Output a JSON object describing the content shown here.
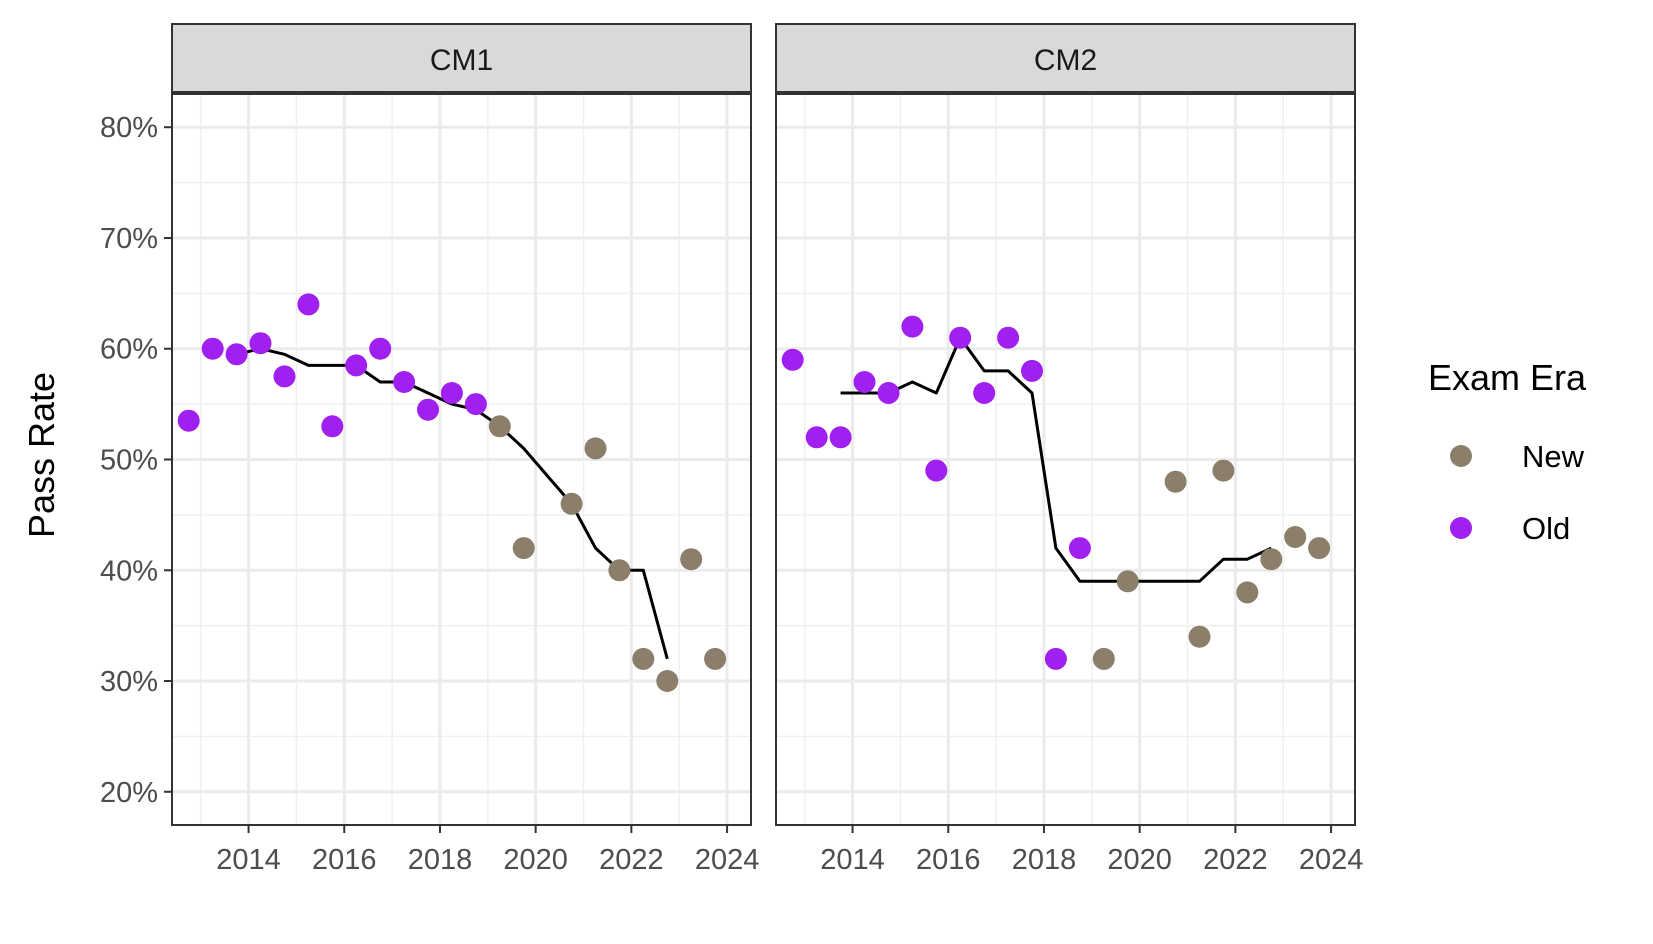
{
  "chart_data": {
    "type": "scatter",
    "ylabel": "Pass Rate",
    "y_ticks": [
      "20%",
      "30%",
      "40%",
      "50%",
      "60%",
      "70%",
      "80%"
    ],
    "y_tick_values": [
      0.2,
      0.3,
      0.4,
      0.5,
      0.6,
      0.7,
      0.8
    ],
    "ylim": [
      0.17,
      0.83
    ],
    "x_ticks": [
      "2014",
      "2016",
      "2018",
      "2020",
      "2022",
      "2024"
    ],
    "x_tick_values": [
      2014,
      2016,
      2018,
      2020,
      2022,
      2024
    ],
    "xlim": [
      2012.4,
      2024.5
    ],
    "grid": true,
    "legend": {
      "title": "Exam Era",
      "placement": "right",
      "entries": [
        {
          "label": "New",
          "color": "#8b7e6a"
        },
        {
          "label": "Old",
          "color": "#a020f0"
        }
      ]
    },
    "colors": {
      "New": "#8b7e6a",
      "Old": "#a020f0",
      "trend": "#000000"
    },
    "panels": [
      {
        "strip": "CM1",
        "points": [
          {
            "x": 2012.75,
            "y": 0.535,
            "era": "Old"
          },
          {
            "x": 2013.25,
            "y": 0.6,
            "era": "Old"
          },
          {
            "x": 2013.75,
            "y": 0.595,
            "era": "Old"
          },
          {
            "x": 2014.25,
            "y": 0.605,
            "era": "Old"
          },
          {
            "x": 2014.75,
            "y": 0.575,
            "era": "Old"
          },
          {
            "x": 2015.25,
            "y": 0.64,
            "era": "Old"
          },
          {
            "x": 2015.75,
            "y": 0.53,
            "era": "Old"
          },
          {
            "x": 2016.25,
            "y": 0.585,
            "era": "Old"
          },
          {
            "x": 2016.75,
            "y": 0.6,
            "era": "Old"
          },
          {
            "x": 2017.25,
            "y": 0.57,
            "era": "Old"
          },
          {
            "x": 2017.75,
            "y": 0.545,
            "era": "Old"
          },
          {
            "x": 2018.25,
            "y": 0.56,
            "era": "Old"
          },
          {
            "x": 2018.75,
            "y": 0.55,
            "era": "Old"
          },
          {
            "x": 2019.25,
            "y": 0.53,
            "era": "New"
          },
          {
            "x": 2019.75,
            "y": 0.42,
            "era": "New"
          },
          {
            "x": 2020.75,
            "y": 0.46,
            "era": "New"
          },
          {
            "x": 2021.25,
            "y": 0.51,
            "era": "New"
          },
          {
            "x": 2021.75,
            "y": 0.4,
            "era": "New"
          },
          {
            "x": 2022.25,
            "y": 0.32,
            "era": "New"
          },
          {
            "x": 2022.75,
            "y": 0.3,
            "era": "New"
          },
          {
            "x": 2023.25,
            "y": 0.41,
            "era": "New"
          },
          {
            "x": 2023.75,
            "y": 0.32,
            "era": "New"
          }
        ],
        "trend": [
          [
            2013.75,
            0.595
          ],
          [
            2014.25,
            0.6
          ],
          [
            2014.75,
            0.595
          ],
          [
            2015.25,
            0.585
          ],
          [
            2015.75,
            0.585
          ],
          [
            2016.25,
            0.585
          ],
          [
            2016.75,
            0.57
          ],
          [
            2017.25,
            0.57
          ],
          [
            2017.75,
            0.56
          ],
          [
            2018.25,
            0.55
          ],
          [
            2018.75,
            0.545
          ],
          [
            2019.25,
            0.53
          ],
          [
            2019.75,
            0.51
          ],
          [
            2020.25,
            0.485
          ],
          [
            2020.75,
            0.46
          ],
          [
            2021.25,
            0.42
          ],
          [
            2021.75,
            0.4
          ],
          [
            2022.25,
            0.4
          ],
          [
            2022.75,
            0.32
          ]
        ]
      },
      {
        "strip": "CM2",
        "points": [
          {
            "x": 2012.75,
            "y": 0.59,
            "era": "Old"
          },
          {
            "x": 2013.25,
            "y": 0.52,
            "era": "Old"
          },
          {
            "x": 2013.75,
            "y": 0.52,
            "era": "Old"
          },
          {
            "x": 2014.25,
            "y": 0.57,
            "era": "Old"
          },
          {
            "x": 2014.75,
            "y": 0.56,
            "era": "Old"
          },
          {
            "x": 2015.25,
            "y": 0.62,
            "era": "Old"
          },
          {
            "x": 2015.75,
            "y": 0.49,
            "era": "Old"
          },
          {
            "x": 2016.25,
            "y": 0.61,
            "era": "Old"
          },
          {
            "x": 2016.75,
            "y": 0.56,
            "era": "Old"
          },
          {
            "x": 2017.25,
            "y": 0.61,
            "era": "Old"
          },
          {
            "x": 2017.75,
            "y": 0.58,
            "era": "Old"
          },
          {
            "x": 2018.25,
            "y": 0.32,
            "era": "Old"
          },
          {
            "x": 2018.75,
            "y": 0.42,
            "era": "Old"
          },
          {
            "x": 2019.25,
            "y": 0.32,
            "era": "New"
          },
          {
            "x": 2019.75,
            "y": 0.39,
            "era": "New"
          },
          {
            "x": 2020.75,
            "y": 0.48,
            "era": "New"
          },
          {
            "x": 2021.25,
            "y": 0.34,
            "era": "New"
          },
          {
            "x": 2021.75,
            "y": 0.49,
            "era": "New"
          },
          {
            "x": 2022.25,
            "y": 0.38,
            "era": "New"
          },
          {
            "x": 2022.75,
            "y": 0.41,
            "era": "New"
          },
          {
            "x": 2023.25,
            "y": 0.43,
            "era": "New"
          },
          {
            "x": 2023.75,
            "y": 0.42,
            "era": "New"
          }
        ],
        "trend": [
          [
            2013.75,
            0.56
          ],
          [
            2014.25,
            0.56
          ],
          [
            2014.75,
            0.56
          ],
          [
            2015.25,
            0.57
          ],
          [
            2015.75,
            0.56
          ],
          [
            2016.25,
            0.61
          ],
          [
            2016.75,
            0.58
          ],
          [
            2017.25,
            0.58
          ],
          [
            2017.75,
            0.56
          ],
          [
            2018.25,
            0.42
          ],
          [
            2018.75,
            0.39
          ],
          [
            2019.25,
            0.39
          ],
          [
            2019.75,
            0.39
          ],
          [
            2020.25,
            0.39
          ],
          [
            2020.75,
            0.39
          ],
          [
            2021.25,
            0.39
          ],
          [
            2021.75,
            0.41
          ],
          [
            2022.25,
            0.41
          ],
          [
            2022.75,
            0.42
          ]
        ]
      }
    ]
  }
}
